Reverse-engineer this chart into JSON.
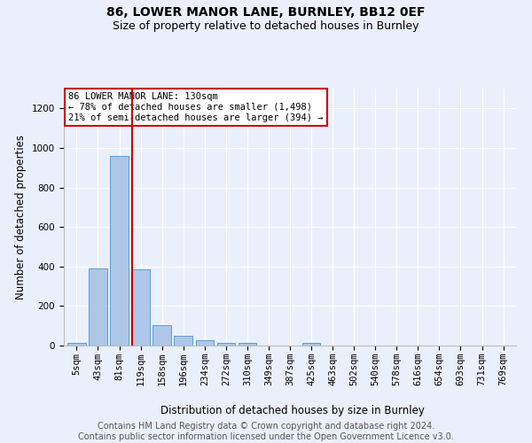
{
  "title": "86, LOWER MANOR LANE, BURNLEY, BB12 0EF",
  "subtitle": "Size of property relative to detached houses in Burnley",
  "xlabel": "Distribution of detached houses by size in Burnley",
  "ylabel": "Number of detached properties",
  "categories": [
    "5sqm",
    "43sqm",
    "81sqm",
    "119sqm",
    "158sqm",
    "196sqm",
    "234sqm",
    "272sqm",
    "310sqm",
    "349sqm",
    "387sqm",
    "425sqm",
    "463sqm",
    "502sqm",
    "540sqm",
    "578sqm",
    "616sqm",
    "654sqm",
    "693sqm",
    "731sqm",
    "769sqm"
  ],
  "bar_values": [
    15,
    390,
    960,
    385,
    105,
    50,
    25,
    15,
    12,
    0,
    0,
    15,
    0,
    0,
    0,
    0,
    0,
    0,
    0,
    0,
    0
  ],
  "bar_color": "#aec6e8",
  "bar_edgecolor": "#5a9fd4",
  "vline_x": 2.58,
  "vline_color": "#cc0000",
  "annotation_text": "86 LOWER MANOR LANE: 130sqm\n← 78% of detached houses are smaller (1,498)\n21% of semi-detached houses are larger (394) →",
  "annotation_box_color": "#ffffff",
  "annotation_box_edgecolor": "#cc0000",
  "ylim": [
    0,
    1300
  ],
  "yticks": [
    0,
    200,
    400,
    600,
    800,
    1000,
    1200
  ],
  "footer_text": "Contains HM Land Registry data © Crown copyright and database right 2024.\nContains public sector information licensed under the Open Government Licence v3.0.",
  "bg_color": "#eaf0fb",
  "plot_bg_color": "#eaf0fb",
  "title_fontsize": 10,
  "subtitle_fontsize": 9,
  "axis_label_fontsize": 8.5,
  "tick_fontsize": 7.5,
  "footer_fontsize": 7
}
